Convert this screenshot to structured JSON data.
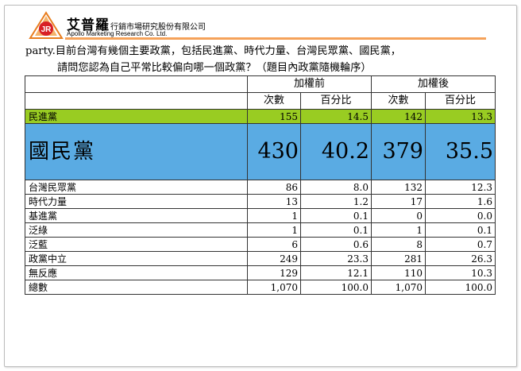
{
  "header": {
    "company_cn": "艾普羅",
    "company_cn_small": "行銷市場研究股份有限公司",
    "company_en": "Apollo Marketing Research Co. Ltd.",
    "logo_letters": "JR"
  },
  "question": {
    "line1": "party.目前台灣有幾個主要政黨，包括民進黨、時代力量、台灣民眾黨、國民黨，",
    "line2": "請問您認為自己平常比較偏向哪一個政黨？（題目內政黨隨機輪序）"
  },
  "table": {
    "group_before": "加權前",
    "group_after": "加權後",
    "col_count": "次數",
    "col_pct": "百分比",
    "rows": [
      {
        "label": "民進黨",
        "n_before": "155",
        "p_before": "14.5",
        "n_after": "142",
        "p_after": "13.3"
      },
      {
        "label": "國民黨",
        "n_before": "430",
        "p_before": "40.2",
        "n_after": "379",
        "p_after": "35.5"
      },
      {
        "label": "台灣民眾黨",
        "n_before": "86",
        "p_before": "8.0",
        "n_after": "132",
        "p_after": "12.3"
      },
      {
        "label": "時代力量",
        "n_before": "13",
        "p_before": "1.2",
        "n_after": "17",
        "p_after": "1.6"
      },
      {
        "label": "基進黨",
        "n_before": "1",
        "p_before": "0.1",
        "n_after": "0",
        "p_after": "0.0"
      },
      {
        "label": "泛綠",
        "n_before": "1",
        "p_before": "0.1",
        "n_after": "1",
        "p_after": "0.1"
      },
      {
        "label": "泛藍",
        "n_before": "6",
        "p_before": "0.6",
        "n_after": "8",
        "p_after": "0.7"
      },
      {
        "label": "政黨中立",
        "n_before": "249",
        "p_before": "23.3",
        "n_after": "281",
        "p_after": "26.3"
      },
      {
        "label": "無反應",
        "n_before": "129",
        "p_before": "12.1",
        "n_after": "110",
        "p_after": "10.3"
      },
      {
        "label": "總數",
        "n_before": "1,070",
        "p_before": "100.0",
        "n_after": "1,070",
        "p_after": "100.0"
      }
    ]
  },
  "colors": {
    "dpp_row": "#99cc22",
    "kmt_row": "#5aabe3",
    "accent_bar": "#f5a25a",
    "logo_red": "#d81f26"
  }
}
